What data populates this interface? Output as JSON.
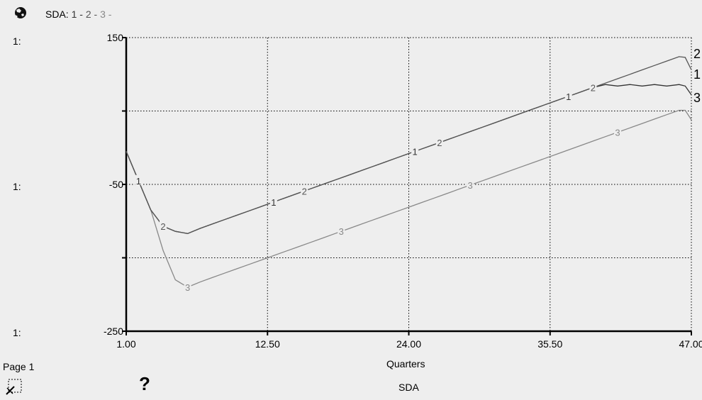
{
  "header": {
    "title_prefix": "SDA:",
    "series_tokens": [
      {
        "text": "1",
        "color": "#333333"
      },
      {
        "text": "2",
        "color": "#555555"
      },
      {
        "text": "3",
        "color": "#888888"
      }
    ],
    "separator": " - ",
    "icon": "moon-globe-icon"
  },
  "left_scale_labels": [
    "1:",
    "1:",
    "1:"
  ],
  "footer": {
    "page_label": "Page 1",
    "help_label": "?",
    "bottom_title": "SDA",
    "icons": [
      "pin-page-icon"
    ]
  },
  "chart_data": {
    "type": "line",
    "title": "SDA",
    "xlabel": "Quarters",
    "ylabel": "",
    "xlim": [
      1,
      47
    ],
    "ylim": [
      -250,
      150
    ],
    "x_ticks": [
      1,
      12.5,
      24,
      35.5,
      47
    ],
    "x_tick_labels": [
      "1.00",
      "12.50",
      "24.00",
      "35.50",
      "47.00"
    ],
    "y_ticks": [
      150,
      50,
      -50,
      -150,
      -250
    ],
    "y_tick_labels": [
      "150",
      "",
      "-50",
      "",
      "-250"
    ],
    "grid": true,
    "series": [
      {
        "name": "1",
        "color": "#333333",
        "x": [
          1,
          2,
          3,
          4,
          5,
          6,
          7,
          8,
          9,
          10,
          11,
          12,
          13,
          14,
          15,
          16,
          17,
          18,
          19,
          20,
          21,
          22,
          23,
          24,
          25,
          26,
          27,
          28,
          29,
          30,
          31,
          32,
          33,
          34,
          35,
          36,
          37,
          38,
          39,
          40,
          41,
          42,
          43,
          44,
          45,
          46,
          46.5,
          47
        ],
        "y": [
          -5,
          -45,
          -85,
          -107,
          -114,
          -117,
          -110,
          -104,
          -98,
          -92,
          -86,
          -80,
          -74,
          -68,
          -62,
          -56,
          -50,
          -44,
          -38,
          -32,
          -26,
          -20,
          -14,
          -8,
          -2,
          4,
          10,
          16,
          22,
          28,
          34,
          40,
          46,
          52,
          58,
          64,
          70,
          76,
          82,
          86,
          84,
          86,
          84,
          86,
          84,
          86,
          84,
          72
        ]
      },
      {
        "name": "2",
        "color": "#555555",
        "x": [
          1,
          2,
          3,
          4,
          5,
          6,
          7,
          8,
          9,
          10,
          11,
          12,
          13,
          14,
          15,
          16,
          17,
          18,
          19,
          20,
          21,
          22,
          23,
          24,
          25,
          26,
          27,
          28,
          29,
          30,
          31,
          32,
          33,
          34,
          35,
          36,
          37,
          38,
          39,
          40,
          41,
          42,
          43,
          44,
          45,
          46,
          46.5,
          47
        ],
        "y": [
          -5,
          -45,
          -85,
          -107,
          -114,
          -117,
          -110,
          -104,
          -98,
          -92,
          -86,
          -80,
          -74,
          -68,
          -62,
          -56,
          -50,
          -44,
          -38,
          -32,
          -26,
          -20,
          -14,
          -8,
          -2,
          4,
          10,
          16,
          22,
          28,
          34,
          40,
          46,
          52,
          58,
          64,
          70,
          76,
          82,
          88,
          94,
          100,
          106,
          112,
          118,
          124,
          123,
          106
        ]
      },
      {
        "name": "3",
        "color": "#888888",
        "x": [
          1,
          2,
          3,
          4,
          5,
          6,
          7,
          8,
          9,
          10,
          11,
          12,
          13,
          14,
          15,
          16,
          17,
          18,
          19,
          20,
          21,
          22,
          23,
          24,
          25,
          26,
          27,
          28,
          29,
          30,
          31,
          32,
          33,
          34,
          35,
          36,
          37,
          38,
          39,
          40,
          41,
          42,
          43,
          44,
          45,
          46,
          46.5,
          47
        ],
        "y": [
          -5,
          -45,
          -85,
          -140,
          -180,
          -190,
          -183,
          -177,
          -171,
          -165,
          -159,
          -153,
          -147,
          -141,
          -135,
          -129,
          -123,
          -117,
          -111,
          -105,
          -99,
          -93,
          -87,
          -81,
          -75,
          -69,
          -63,
          -57,
          -51,
          -45,
          -39,
          -33,
          -27,
          -21,
          -15,
          -9,
          -3,
          3,
          9,
          15,
          21,
          27,
          33,
          39,
          45,
          51,
          51,
          38
        ]
      }
    ],
    "series_label_positions_x": {
      "1": [
        2,
        13,
        24.5,
        37
      ],
      "2": [
        4,
        15.5,
        26.5,
        39
      ],
      "3": [
        6,
        18.5,
        29,
        41
      ]
    },
    "series_end_labels": [
      "2",
      "1",
      "3"
    ]
  }
}
